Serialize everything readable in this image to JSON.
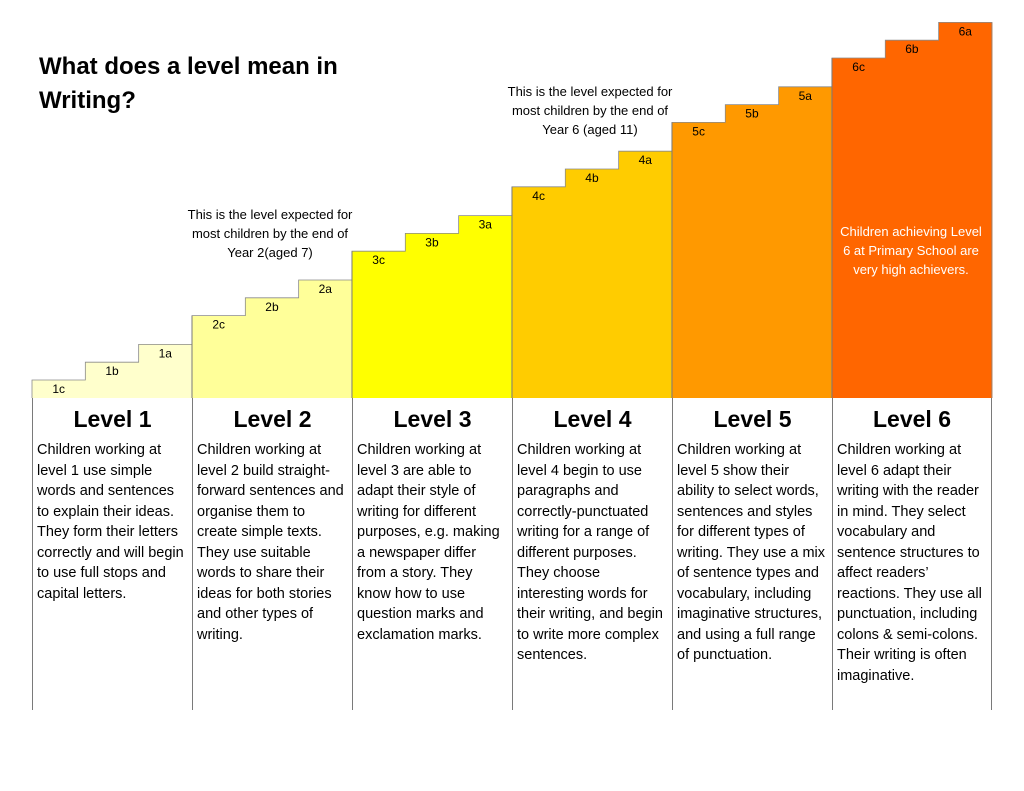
{
  "title": "What does a level mean in Writing?",
  "steps": [
    {
      "label": "1c",
      "color": "#FFFFCC"
    },
    {
      "label": "1b",
      "color": "#FFFFCC"
    },
    {
      "label": "1a",
      "color": "#FFFFCC"
    },
    {
      "label": "2c",
      "color": "#FFFF99"
    },
    {
      "label": "2b",
      "color": "#FFFF99"
    },
    {
      "label": "2a",
      "color": "#FFFF99"
    },
    {
      "label": "3c",
      "color": "#FFFF00"
    },
    {
      "label": "3b",
      "color": "#FFFF00"
    },
    {
      "label": "3a",
      "color": "#FFFF00"
    },
    {
      "label": "4c",
      "color": "#FFCC00"
    },
    {
      "label": "4b",
      "color": "#FFCC00"
    },
    {
      "label": "4a",
      "color": "#FFCC00"
    },
    {
      "label": "5c",
      "color": "#FF9900"
    },
    {
      "label": "5b",
      "color": "#FF9900"
    },
    {
      "label": "5a",
      "color": "#FF9900"
    },
    {
      "label": "6c",
      "color": "#FF6600"
    },
    {
      "label": "6b",
      "color": "#FF6600"
    },
    {
      "label": "6a",
      "color": "#FF6600"
    }
  ],
  "notes": {
    "year2": "This is the level expected for most children by the end of Year 2(aged 7)",
    "year6": "This is the level expected for most children by the end of Year 6 (aged 11)",
    "level6": "Children achieving Level 6 at Primary School are very high achievers."
  },
  "levels": [
    {
      "heading": "Level 1",
      "text": "Children working at level 1 use simple words and sentences to explain their ideas. They form their letters correctly and will begin to use full stops and capital letters."
    },
    {
      "heading": "Level 2",
      "text": "Children working at level 2 build straight-forward sentences and organise them to create simple texts. They use suitable words to share their ideas for both stories and other types of writing."
    },
    {
      "heading": "Level 3",
      "text": "Children working at level 3 are able to adapt their style of writing for different purposes, e.g. making a newspaper differ from a story. They know how to use question marks and exclamation marks."
    },
    {
      "heading": "Level 4",
      "text": "Children working at level 4 begin to use paragraphs and correctly-punctuated writing for a range of different purposes. They choose interesting words for their writing, and begin to write more complex sentences."
    },
    {
      "heading": "Level 5",
      "text": "Children working at level 5 show their ability to select words, sentences and styles for different types of writing. They use a mix of sentence types and vocabulary, including imaginative structures, and using a full range of punctuation."
    },
    {
      "heading": "Level 6",
      "text": "Children working at level 6 adapt their writing with the reader in mind. They select vocabulary and sentence structures to affect readers’ reactions. They use all punctuation, including colons & semi-colons. Their writing is often imaginative."
    }
  ]
}
